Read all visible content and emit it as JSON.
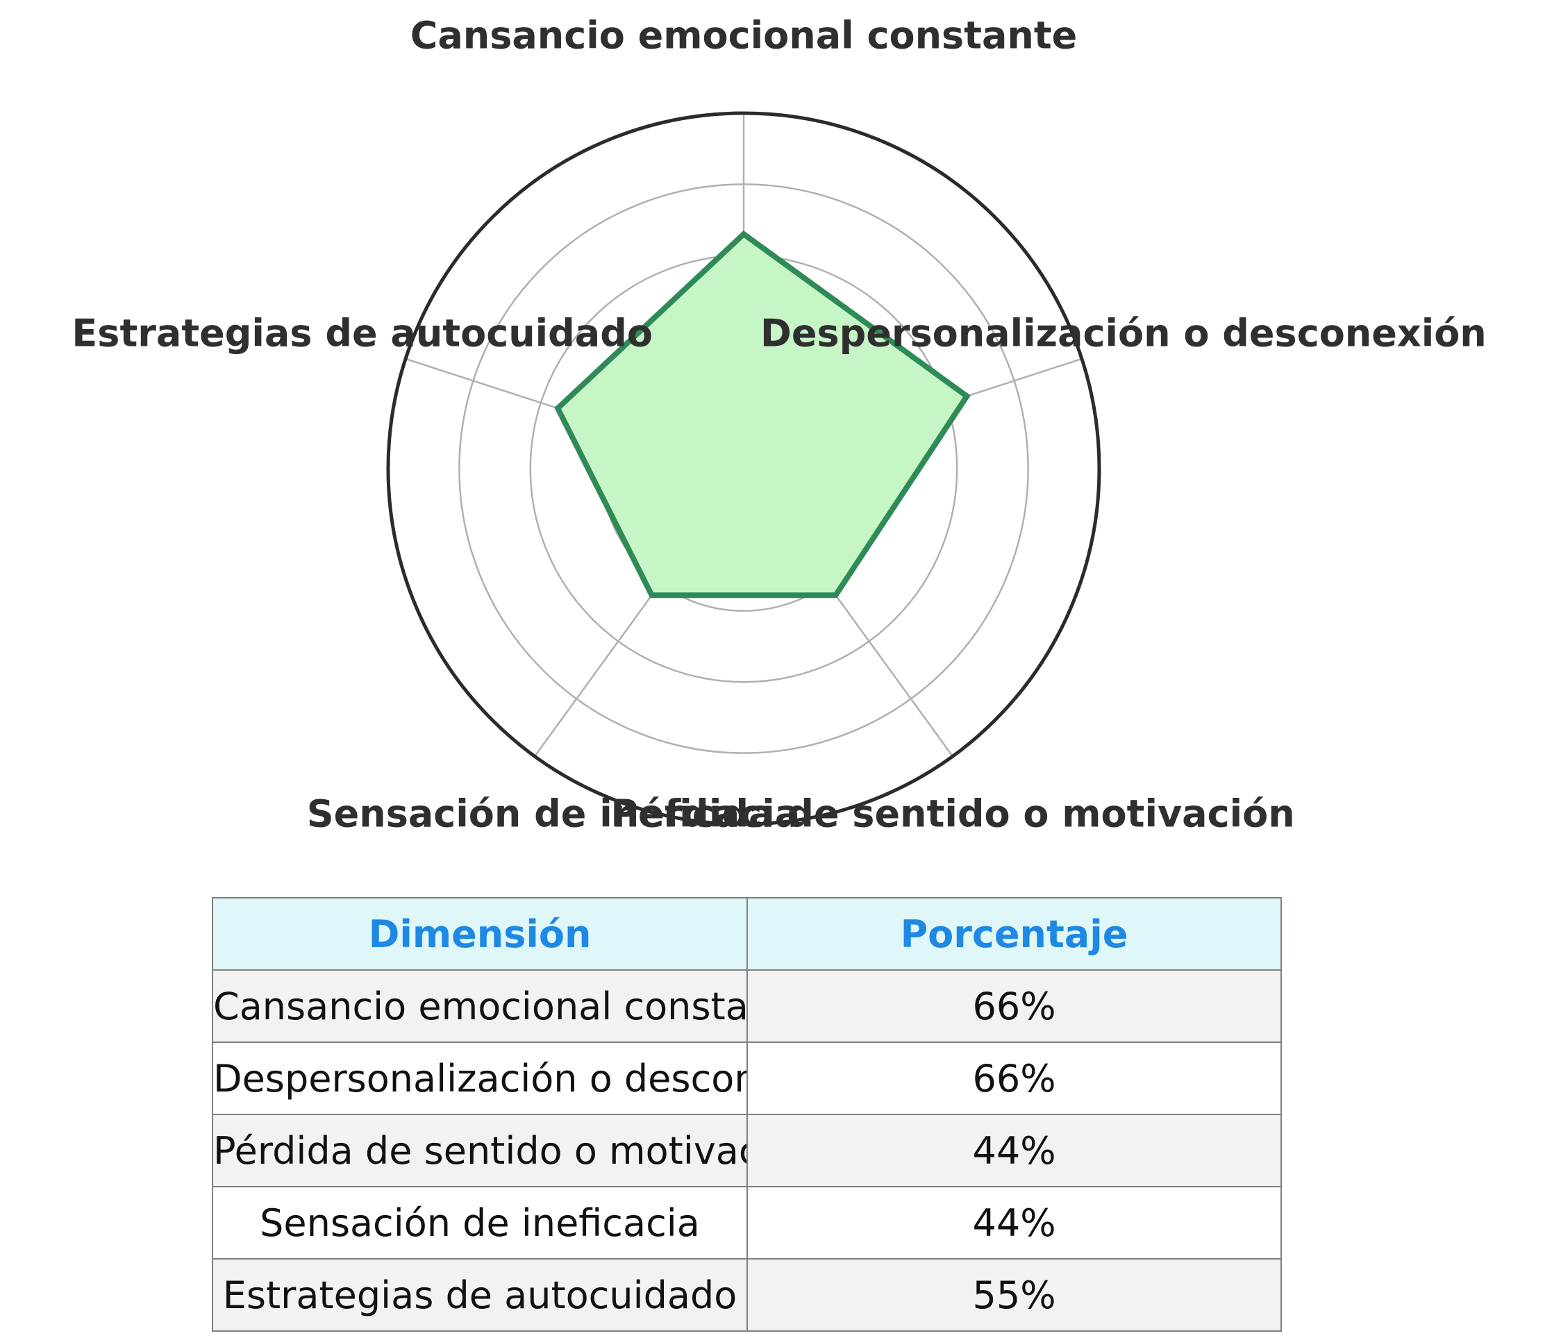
{
  "chart_data": {
    "type": "radar",
    "categories": [
      "Cansancio emocional constante",
      "Despersonalización o desconexión",
      "Pérdida de sentido o motivación",
      "Sensación de ineficacia",
      "Estrategias de autocuidado"
    ],
    "values": [
      66,
      66,
      44,
      44,
      55
    ],
    "rlim": [
      0,
      100
    ],
    "rings": [
      20,
      40,
      60,
      80,
      100
    ],
    "grid": true,
    "colors": {
      "line": "#2e8b57",
      "fill": "#c6f5c6",
      "outer_ring": "#2b2b2b",
      "grid": "#b0b0b0"
    }
  },
  "table": {
    "headers": [
      "Dimensión",
      "Porcentaje"
    ],
    "rows": [
      {
        "dimension": "Cansancio emocional constante",
        "value": "66%"
      },
      {
        "dimension": "Despersonalización o desconexión",
        "value": "66%"
      },
      {
        "dimension": "Pérdida de sentido o motivación",
        "value": "44%"
      },
      {
        "dimension": "Sensación de ineficacia",
        "value": "44%"
      },
      {
        "dimension": "Estrategias de autocuidado",
        "value": "55%"
      }
    ],
    "colors": {
      "header_bg": "#e0f7fa",
      "header_text": "#1e88e5",
      "stripe": "#f2f2f2",
      "border": "#808080"
    }
  }
}
